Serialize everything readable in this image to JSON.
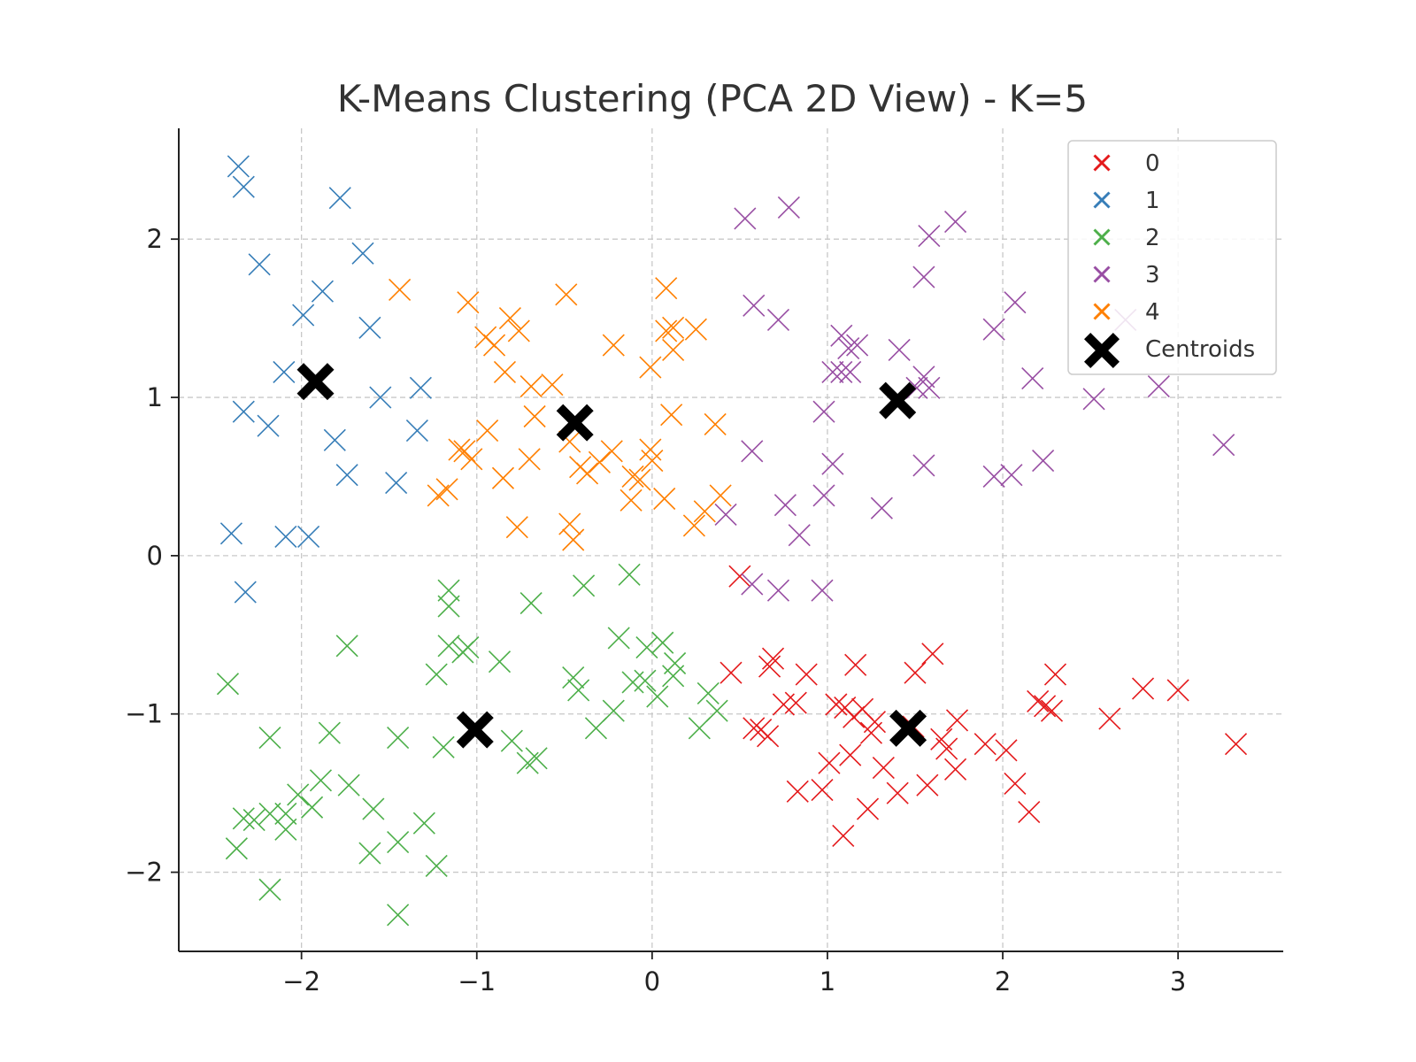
{
  "chart_data": {
    "type": "scatter",
    "title": "K-Means Clustering (PCA 2D View) - K=5",
    "xlabel": "",
    "ylabel": "",
    "xlim": [
      -2.7,
      3.6
    ],
    "ylim": [
      -2.5,
      2.7
    ],
    "xticks": [
      -2,
      -1,
      0,
      1,
      2,
      3
    ],
    "yticks": [
      -2,
      -1,
      0,
      1,
      2
    ],
    "xtick_labels": [
      "−2",
      "−1",
      "0",
      "1",
      "2",
      "3"
    ],
    "ytick_labels": [
      "−2",
      "−1",
      "0",
      "1",
      "2"
    ],
    "grid": true,
    "marker": "x",
    "legend_position": "top-right",
    "series": [
      {
        "name": "0",
        "color": "#e41a1c",
        "points": [
          [
            0.5,
            -0.13
          ],
          [
            0.45,
            -0.74
          ],
          [
            0.58,
            -1.09
          ],
          [
            0.62,
            -1.1
          ],
          [
            0.66,
            -1.14
          ],
          [
            0.67,
            -0.7
          ],
          [
            0.69,
            -0.65
          ],
          [
            0.75,
            -0.94
          ],
          [
            0.82,
            -0.93
          ],
          [
            0.83,
            -1.49
          ],
          [
            0.88,
            -0.75
          ],
          [
            0.97,
            -1.48
          ],
          [
            1.01,
            -1.31
          ],
          [
            1.05,
            -0.94
          ],
          [
            1.09,
            -1.77
          ],
          [
            1.1,
            -0.96
          ],
          [
            1.13,
            -1.26
          ],
          [
            1.15,
            -1.02
          ],
          [
            1.16,
            -0.69
          ],
          [
            1.2,
            -0.97
          ],
          [
            1.23,
            -1.6
          ],
          [
            1.25,
            -1.12
          ],
          [
            1.27,
            -1.05
          ],
          [
            1.32,
            -1.34
          ],
          [
            1.4,
            -1.5
          ],
          [
            1.49,
            -1.08
          ],
          [
            1.5,
            -0.74
          ],
          [
            1.57,
            -1.45
          ],
          [
            1.6,
            -0.62
          ],
          [
            1.65,
            -1.16
          ],
          [
            1.68,
            -1.22
          ],
          [
            1.73,
            -1.35
          ],
          [
            1.74,
            -1.04
          ],
          [
            1.9,
            -1.19
          ],
          [
            2.02,
            -1.23
          ],
          [
            2.07,
            -1.44
          ],
          [
            2.15,
            -1.62
          ],
          [
            2.2,
            -0.92
          ],
          [
            2.24,
            -0.95
          ],
          [
            2.28,
            -0.98
          ],
          [
            2.3,
            -0.75
          ],
          [
            2.61,
            -1.03
          ],
          [
            2.8,
            -0.84
          ],
          [
            3.0,
            -0.85
          ],
          [
            3.33,
            -1.19
          ]
        ]
      },
      {
        "name": "1",
        "color": "#377eb8",
        "points": [
          [
            -2.36,
            2.46
          ],
          [
            -2.33,
            2.33
          ],
          [
            -2.24,
            1.84
          ],
          [
            -1.78,
            2.26
          ],
          [
            -1.65,
            1.91
          ],
          [
            -1.88,
            1.67
          ],
          [
            -1.99,
            1.52
          ],
          [
            -1.61,
            1.44
          ],
          [
            -2.1,
            1.16
          ],
          [
            -1.55,
            1.0
          ],
          [
            -1.32,
            1.06
          ],
          [
            -2.33,
            0.91
          ],
          [
            -2.19,
            0.82
          ],
          [
            -1.34,
            0.79
          ],
          [
            -1.81,
            0.73
          ],
          [
            -1.74,
            0.51
          ],
          [
            -1.46,
            0.46
          ],
          [
            -2.4,
            0.14
          ],
          [
            -2.09,
            0.12
          ],
          [
            -1.96,
            0.12
          ],
          [
            -2.32,
            -0.23
          ]
        ]
      },
      {
        "name": "2",
        "color": "#4daf4a",
        "points": [
          [
            -0.13,
            -0.12
          ],
          [
            -0.39,
            -0.19
          ],
          [
            -1.16,
            -0.22
          ],
          [
            -1.16,
            -0.32
          ],
          [
            -0.69,
            -0.3
          ],
          [
            -1.74,
            -0.57
          ],
          [
            -1.16,
            -0.57
          ],
          [
            -1.05,
            -0.58
          ],
          [
            -1.08,
            -0.61
          ],
          [
            -0.87,
            -0.67
          ],
          [
            -1.23,
            -0.75
          ],
          [
            -0.19,
            -0.52
          ],
          [
            -0.03,
            -0.58
          ],
          [
            0.06,
            -0.55
          ],
          [
            0.13,
            -0.68
          ],
          [
            0.12,
            -0.76
          ],
          [
            -0.45,
            -0.77
          ],
          [
            -0.42,
            -0.85
          ],
          [
            -0.11,
            -0.8
          ],
          [
            -0.04,
            -0.79
          ],
          [
            0.03,
            -0.89
          ],
          [
            0.32,
            -0.87
          ],
          [
            0.37,
            -0.98
          ],
          [
            0.27,
            -1.09
          ],
          [
            -0.22,
            -0.98
          ],
          [
            -0.32,
            -1.09
          ],
          [
            -2.42,
            -0.81
          ],
          [
            -2.18,
            -1.15
          ],
          [
            -1.84,
            -1.12
          ],
          [
            -1.45,
            -1.15
          ],
          [
            -1.19,
            -1.21
          ],
          [
            -0.8,
            -1.17
          ],
          [
            -0.71,
            -1.31
          ],
          [
            -0.66,
            -1.28
          ],
          [
            -2.02,
            -1.51
          ],
          [
            -1.89,
            -1.42
          ],
          [
            -1.73,
            -1.45
          ],
          [
            -1.59,
            -1.6
          ],
          [
            -2.33,
            -1.66
          ],
          [
            -2.27,
            -1.67
          ],
          [
            -2.18,
            -1.63
          ],
          [
            -2.09,
            -1.63
          ],
          [
            -1.94,
            -1.59
          ],
          [
            -2.09,
            -1.73
          ],
          [
            -2.37,
            -1.85
          ],
          [
            -1.61,
            -1.88
          ],
          [
            -1.45,
            -1.81
          ],
          [
            -1.3,
            -1.69
          ],
          [
            -1.23,
            -1.96
          ],
          [
            -2.18,
            -2.11
          ],
          [
            -1.45,
            -2.27
          ]
        ]
      },
      {
        "name": "3",
        "color": "#984ea3",
        "points": [
          [
            0.53,
            2.13
          ],
          [
            0.78,
            2.2
          ],
          [
            1.58,
            2.02
          ],
          [
            1.73,
            2.11
          ],
          [
            1.55,
            1.76
          ],
          [
            0.58,
            1.58
          ],
          [
            0.72,
            1.49
          ],
          [
            1.95,
            1.43
          ],
          [
            2.07,
            1.6
          ],
          [
            2.7,
            1.49
          ],
          [
            1.08,
            1.39
          ],
          [
            1.12,
            1.31
          ],
          [
            1.17,
            1.33
          ],
          [
            1.41,
            1.3
          ],
          [
            1.03,
            1.16
          ],
          [
            1.08,
            1.16
          ],
          [
            1.13,
            1.16
          ],
          [
            1.51,
            1.06
          ],
          [
            1.55,
            1.13
          ],
          [
            1.58,
            1.06
          ],
          [
            2.17,
            1.12
          ],
          [
            2.52,
            0.99
          ],
          [
            2.89,
            1.07
          ],
          [
            0.98,
            0.91
          ],
          [
            0.57,
            0.66
          ],
          [
            1.03,
            0.58
          ],
          [
            1.55,
            0.57
          ],
          [
            1.95,
            0.5
          ],
          [
            2.05,
            0.51
          ],
          [
            2.23,
            0.6
          ],
          [
            3.26,
            0.7
          ],
          [
            0.42,
            0.26
          ],
          [
            0.76,
            0.32
          ],
          [
            0.84,
            0.13
          ],
          [
            0.98,
            0.38
          ],
          [
            1.31,
            0.3
          ],
          [
            0.57,
            -0.18
          ],
          [
            0.72,
            -0.22
          ],
          [
            0.97,
            -0.22
          ]
        ]
      },
      {
        "name": "4",
        "color": "#ff7f00",
        "points": [
          [
            -1.44,
            1.68
          ],
          [
            -1.05,
            1.6
          ],
          [
            -0.49,
            1.65
          ],
          [
            0.08,
            1.69
          ],
          [
            -0.81,
            1.5
          ],
          [
            -0.76,
            1.42
          ],
          [
            -0.95,
            1.38
          ],
          [
            -0.9,
            1.33
          ],
          [
            0.08,
            1.42
          ],
          [
            0.12,
            1.44
          ],
          [
            0.25,
            1.43
          ],
          [
            0.12,
            1.3
          ],
          [
            -0.22,
            1.33
          ],
          [
            -0.84,
            1.16
          ],
          [
            -0.69,
            1.07
          ],
          [
            -0.57,
            1.08
          ],
          [
            -0.01,
            1.19
          ],
          [
            -0.67,
            0.88
          ],
          [
            0.11,
            0.89
          ],
          [
            0.36,
            0.83
          ],
          [
            -0.94,
            0.79
          ],
          [
            -1.1,
            0.67
          ],
          [
            -1.07,
            0.66
          ],
          [
            -1.03,
            0.61
          ],
          [
            -0.7,
            0.61
          ],
          [
            -0.47,
            0.72
          ],
          [
            -0.23,
            0.66
          ],
          [
            -0.01,
            0.67
          ],
          [
            0.0,
            0.6
          ],
          [
            -0.41,
            0.56
          ],
          [
            -0.37,
            0.52
          ],
          [
            -0.3,
            0.59
          ],
          [
            -0.11,
            0.5
          ],
          [
            -0.07,
            0.48
          ],
          [
            -0.85,
            0.49
          ],
          [
            -1.17,
            0.42
          ],
          [
            -1.22,
            0.38
          ],
          [
            -0.12,
            0.35
          ],
          [
            0.07,
            0.36
          ],
          [
            0.39,
            0.38
          ],
          [
            0.3,
            0.28
          ],
          [
            0.24,
            0.19
          ],
          [
            -0.77,
            0.18
          ],
          [
            -0.47,
            0.2
          ],
          [
            -0.45,
            0.1
          ]
        ]
      }
    ],
    "centroids": {
      "name": "Centroids",
      "color": "#000000",
      "points": [
        [
          -1.92,
          1.1
        ],
        [
          -0.44,
          0.84
        ],
        [
          1.4,
          0.98
        ],
        [
          -1.01,
          -1.1
        ],
        [
          1.46,
          -1.09
        ]
      ]
    }
  }
}
